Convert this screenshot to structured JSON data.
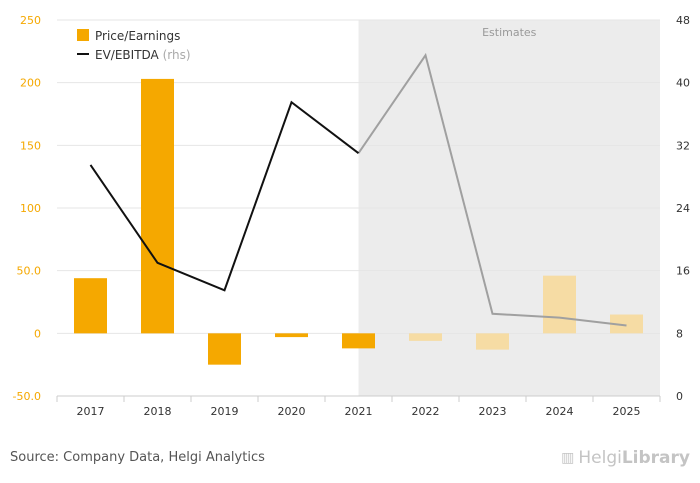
{
  "chart_data": {
    "type": "bar+line",
    "categories": [
      "2017",
      "2018",
      "2019",
      "2020",
      "2021",
      "2022",
      "2023",
      "2024",
      "2025"
    ],
    "estimate_start_index": 5,
    "estimates_label": "Estimates",
    "series": [
      {
        "name": "Price/Earnings",
        "axis": "left",
        "type": "bar",
        "color": "#f5a800",
        "estimate_color": "#f6dca4",
        "values": [
          44,
          203,
          -25,
          -3,
          -12,
          -6,
          -13,
          46,
          15
        ]
      },
      {
        "name": "EV/EBITDA",
        "suffix": "(rhs)",
        "axis": "right",
        "type": "line",
        "color": "#111111",
        "estimate_color": "#a0a0a0",
        "values": [
          29.5,
          17,
          13.5,
          37.5,
          31,
          43.5,
          10.5,
          10,
          9
        ]
      }
    ],
    "y_left": {
      "min": -50,
      "max": 250,
      "ticks": [
        "-50.0",
        "0",
        "50.0",
        "100",
        "150",
        "200",
        "250"
      ],
      "tick_values": [
        -50,
        0,
        50,
        100,
        150,
        200,
        250
      ]
    },
    "y_right": {
      "min": 0,
      "max": 48,
      "ticks": [
        "0",
        "8",
        "16",
        "24",
        "32",
        "40",
        "48"
      ],
      "tick_values": [
        0,
        8,
        16,
        24,
        32,
        40,
        48
      ]
    },
    "legend": {
      "placement": "top-left"
    }
  },
  "footer": {
    "source": "Source: Company Data, Helgi Analytics",
    "brand_light": "Helgi",
    "brand_bold": "Library"
  }
}
